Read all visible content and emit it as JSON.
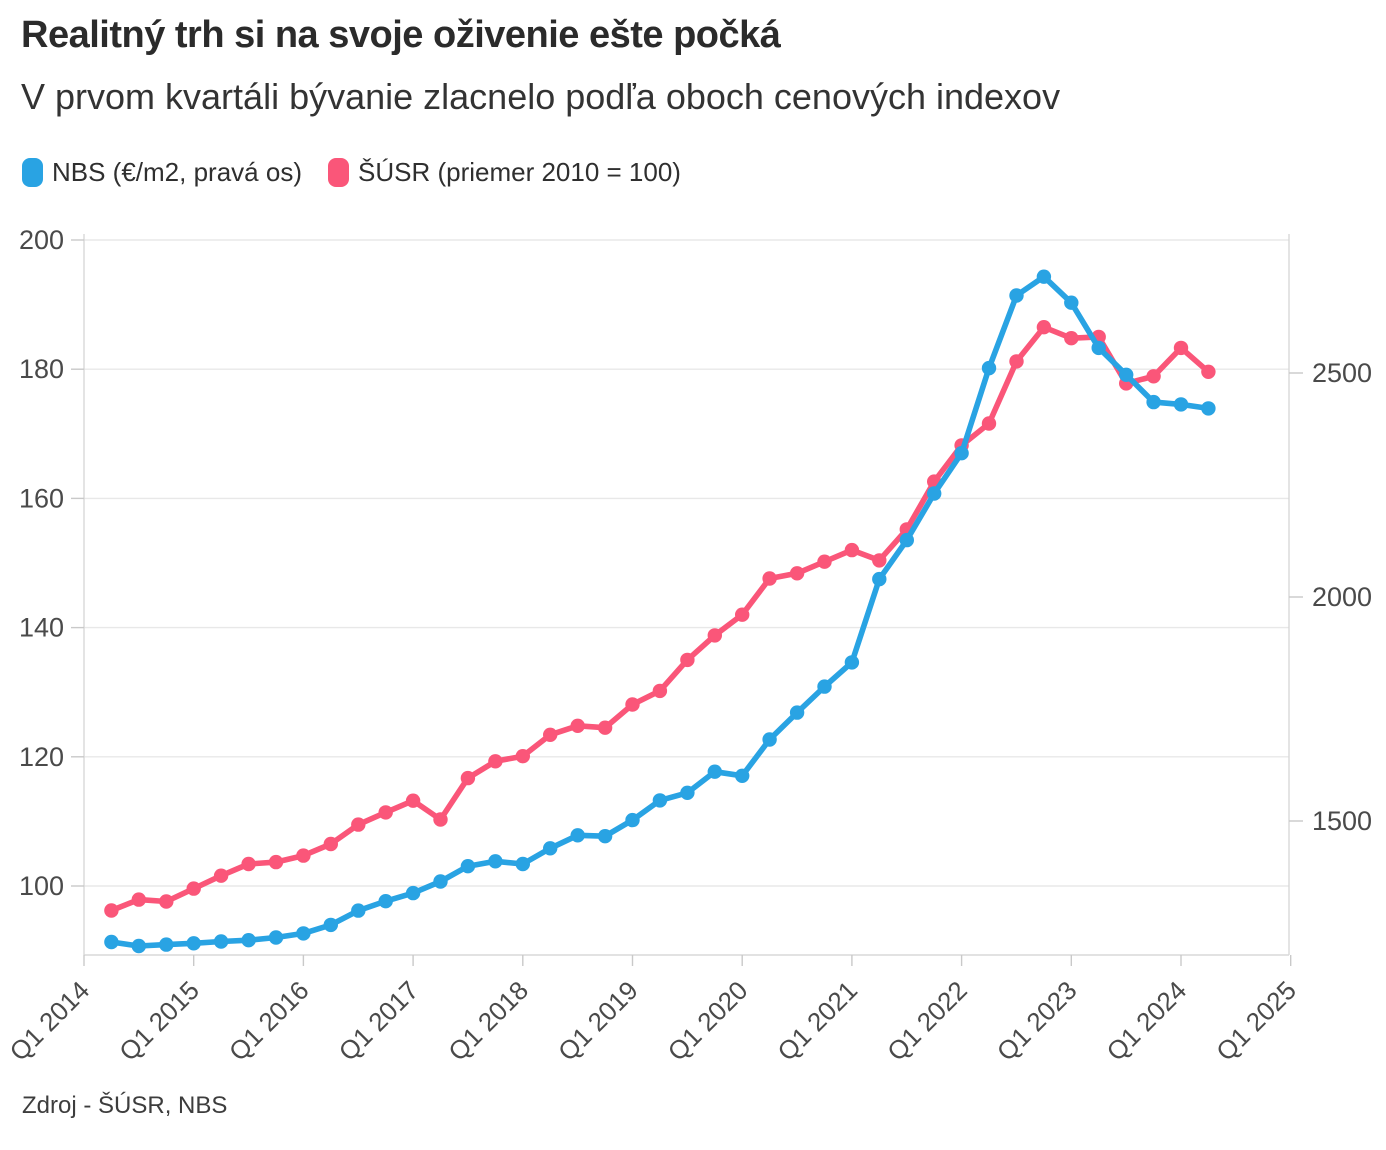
{
  "header": {
    "title": "Realitný trh si na svoje oživenie ešte počká",
    "subtitle": "V prvom kvartáli bývanie zlacnelo podľa oboch cenových indexov"
  },
  "legend": {
    "items": [
      {
        "label": "NBS (€/m2, pravá os)",
        "color": "#29a3e3",
        "icon": "rounded-pill-swatch"
      },
      {
        "label": "ŠÚSR (priemer 2010 = 100)",
        "color": "#fa5679",
        "icon": "rounded-pill-swatch"
      }
    ]
  },
  "footer": {
    "source": "Zdroj - ŠÚSR, NBS"
  },
  "colors": {
    "nbs_blue": "#29a3e3",
    "susr_pink": "#fa5679",
    "gridline": "#e8e8e8",
    "axis_border": "#d8d8d8",
    "tick": "#c9c9c9",
    "axis_text": "#4a4a4a"
  },
  "chart_data": {
    "type": "line",
    "title": "Realitný trh si na svoje oživenie ešte počká",
    "subtitle": "V prvom kvartáli bývanie zlacnelo podľa oboch cenových indexov",
    "grid": "horizontal",
    "legend_position": "top",
    "x": [
      "Q1 2014",
      "Q2 2014",
      "Q3 2014",
      "Q4 2014",
      "Q1 2015",
      "Q2 2015",
      "Q3 2015",
      "Q4 2015",
      "Q1 2016",
      "Q2 2016",
      "Q3 2016",
      "Q4 2016",
      "Q1 2017",
      "Q2 2017",
      "Q3 2017",
      "Q4 2017",
      "Q1 2018",
      "Q2 2018",
      "Q3 2018",
      "Q4 2018",
      "Q1 2019",
      "Q2 2019",
      "Q3 2019",
      "Q4 2019",
      "Q1 2020",
      "Q2 2020",
      "Q3 2020",
      "Q4 2020",
      "Q1 2021",
      "Q2 2021",
      "Q3 2021",
      "Q4 2021",
      "Q1 2022",
      "Q2 2022",
      "Q3 2022",
      "Q4 2022",
      "Q1 2023",
      "Q2 2023",
      "Q3 2023",
      "Q4 2023",
      "Q1 2024"
    ],
    "series": [
      {
        "name": "NBS (€/m2, pravá os)",
        "axis": "right",
        "color": "#29a3e3",
        "values": [
          1230,
          1221,
          1224,
          1227,
          1231,
          1234,
          1240,
          1249,
          1268,
          1300,
          1321,
          1339,
          1365,
          1399,
          1410,
          1404,
          1439,
          1468,
          1466,
          1502,
          1546,
          1563,
          1610,
          1601,
          1682,
          1742,
          1800,
          1854,
          2040,
          2127,
          2231,
          2321,
          2511,
          2673,
          2715,
          2657,
          2556,
          2496,
          2435,
          2430,
          2421
        ]
      },
      {
        "name": "ŠÚSR (priemer 2010 = 100)",
        "axis": "left",
        "color": "#fa5679",
        "values": [
          96.2,
          97.9,
          97.6,
          99.6,
          101.6,
          103.4,
          103.7,
          104.7,
          106.5,
          109.5,
          111.4,
          113.2,
          110.3,
          116.7,
          119.3,
          120.1,
          123.4,
          124.8,
          124.5,
          128.1,
          130.2,
          135,
          138.8,
          142,
          147.6,
          148.4,
          150.2,
          152,
          150.4,
          155.2,
          162.6,
          168.2,
          171.6,
          181.2,
          186.5,
          184.8,
          185,
          177.8,
          178.9,
          183.3,
          179.6
        ]
      }
    ],
    "left_axis": {
      "ticks": [
        100,
        120,
        140,
        160,
        180,
        200
      ],
      "ylim": [
        89,
        200
      ]
    },
    "right_axis": {
      "ticks": [
        1500,
        2000,
        2500
      ],
      "ylim": [
        1200,
        2790
      ]
    },
    "x_axis": {
      "tick_labels": [
        "Q1 2014",
        "Q1 2015",
        "Q1 2016",
        "Q1 2017",
        "Q1 2018",
        "Q1 2019",
        "Q1 2020",
        "Q1 2021",
        "Q1 2022",
        "Q1 2023",
        "Q1 2024",
        "Q1 2025"
      ]
    }
  }
}
